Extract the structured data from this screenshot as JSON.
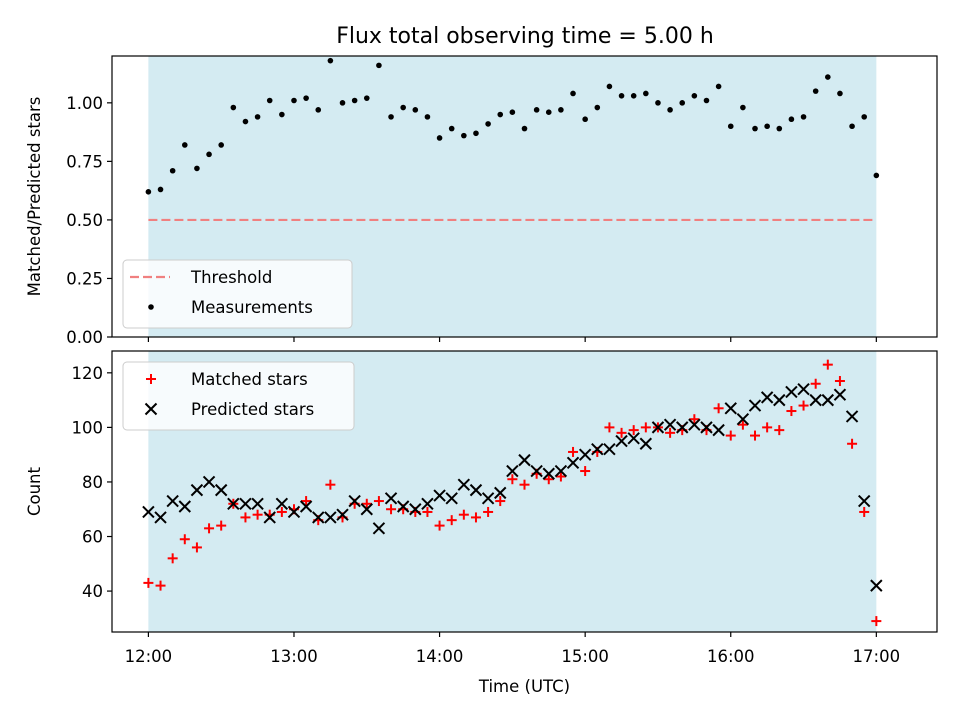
{
  "figure": {
    "title": "Flux total observing time = 5.00 h"
  },
  "chart_data": [
    {
      "type": "scatter",
      "ylabel": "Matched/Predicted stars",
      "xlabel": "",
      "x_tick_labels": [
        "12:00",
        "13:00",
        "14:00",
        "15:00",
        "16:00",
        "17:00"
      ],
      "ylim": [
        0.0,
        1.2
      ],
      "y_ticks": [
        "0.00",
        "0.25",
        "0.50",
        "0.75",
        "1.00"
      ],
      "observing_window": [
        "12:00",
        "17:00"
      ],
      "legend": {
        "placement": "lower-left",
        "entries": [
          "Threshold",
          "Measurements"
        ]
      },
      "threshold": {
        "name": "Threshold",
        "value": 0.5,
        "style": "dashed",
        "color": "#f08080"
      },
      "series": [
        {
          "name": "Measurements",
          "color": "#000000",
          "x": [
            "12:00",
            "12:05",
            "12:10",
            "12:15",
            "12:20",
            "12:25",
            "12:30",
            "12:35",
            "12:40",
            "12:45",
            "12:50",
            "12:55",
            "13:00",
            "13:05",
            "13:10",
            "13:15",
            "13:20",
            "13:25",
            "13:30",
            "13:35",
            "13:40",
            "13:45",
            "13:50",
            "13:55",
            "14:00",
            "14:05",
            "14:10",
            "14:15",
            "14:20",
            "14:25",
            "14:30",
            "14:35",
            "14:40",
            "14:45",
            "14:50",
            "14:55",
            "15:00",
            "15:05",
            "15:10",
            "15:15",
            "15:20",
            "15:25",
            "15:30",
            "15:35",
            "15:40",
            "15:45",
            "15:50",
            "15:55",
            "16:00",
            "16:05",
            "16:10",
            "16:15",
            "16:20",
            "16:25",
            "16:30",
            "16:35",
            "16:40",
            "16:45",
            "16:50",
            "16:55",
            "17:00"
          ],
          "values": [
            0.62,
            0.63,
            0.71,
            0.82,
            0.72,
            0.78,
            0.82,
            0.98,
            0.92,
            0.94,
            1.01,
            0.95,
            1.01,
            1.02,
            0.97,
            1.18,
            1.0,
            1.01,
            1.02,
            1.16,
            0.94,
            0.98,
            0.97,
            0.94,
            0.85,
            0.89,
            0.86,
            0.87,
            0.91,
            0.95,
            0.96,
            0.89,
            0.97,
            0.96,
            0.97,
            1.04,
            0.93,
            0.98,
            1.07,
            1.03,
            1.03,
            1.04,
            1.0,
            0.97,
            1.0,
            1.03,
            1.01,
            1.07,
            0.9,
            0.98,
            0.89,
            0.9,
            0.89,
            0.93,
            0.94,
            1.05,
            1.11,
            1.04,
            0.9,
            0.94,
            0.69
          ]
        }
      ]
    },
    {
      "type": "scatter",
      "ylabel": "Count",
      "xlabel": "Time (UTC)",
      "x_tick_labels": [
        "12:00",
        "13:00",
        "14:00",
        "15:00",
        "16:00",
        "17:00"
      ],
      "ylim": [
        25,
        128
      ],
      "y_ticks": [
        "40",
        "60",
        "80",
        "100",
        "120"
      ],
      "observing_window": [
        "12:00",
        "17:00"
      ],
      "legend": {
        "placement": "top-left",
        "entries": [
          "Matched stars",
          "Predicted stars"
        ]
      },
      "series": [
        {
          "name": "Matched stars",
          "marker": "plus",
          "color": "#ff0000",
          "x": [
            "12:00",
            "12:05",
            "12:10",
            "12:15",
            "12:20",
            "12:25",
            "12:30",
            "12:35",
            "12:40",
            "12:45",
            "12:50",
            "12:55",
            "13:00",
            "13:05",
            "13:10",
            "13:15",
            "13:20",
            "13:25",
            "13:30",
            "13:35",
            "13:40",
            "13:45",
            "13:50",
            "13:55",
            "14:00",
            "14:05",
            "14:10",
            "14:15",
            "14:20",
            "14:25",
            "14:30",
            "14:35",
            "14:40",
            "14:45",
            "14:50",
            "14:55",
            "15:00",
            "15:05",
            "15:10",
            "15:15",
            "15:20",
            "15:25",
            "15:30",
            "15:35",
            "15:40",
            "15:45",
            "15:50",
            "15:55",
            "16:00",
            "16:05",
            "16:10",
            "16:15",
            "16:20",
            "16:25",
            "16:30",
            "16:35",
            "16:40",
            "16:45",
            "16:50",
            "16:55",
            "17:00"
          ],
          "values": [
            43,
            42,
            52,
            59,
            56,
            63,
            64,
            72,
            67,
            68,
            68,
            69,
            70,
            73,
            66,
            79,
            67,
            72,
            72,
            73,
            70,
            70,
            69,
            69,
            64,
            66,
            68,
            67,
            69,
            73,
            81,
            79,
            83,
            81,
            82,
            91,
            84,
            91,
            100,
            98,
            99,
            100,
            100,
            98,
            99,
            103,
            99,
            107,
            97,
            101,
            97,
            100,
            99,
            106,
            108,
            116,
            123,
            117,
            94,
            69,
            29
          ]
        },
        {
          "name": "Predicted stars",
          "marker": "x",
          "color": "#000000",
          "x": [
            "12:00",
            "12:05",
            "12:10",
            "12:15",
            "12:20",
            "12:25",
            "12:30",
            "12:35",
            "12:40",
            "12:45",
            "12:50",
            "12:55",
            "13:00",
            "13:05",
            "13:10",
            "13:15",
            "13:20",
            "13:25",
            "13:30",
            "13:35",
            "13:40",
            "13:45",
            "13:50",
            "13:55",
            "14:00",
            "14:05",
            "14:10",
            "14:15",
            "14:20",
            "14:25",
            "14:30",
            "14:35",
            "14:40",
            "14:45",
            "14:50",
            "14:55",
            "15:00",
            "15:05",
            "15:10",
            "15:15",
            "15:20",
            "15:25",
            "15:30",
            "15:35",
            "15:40",
            "15:45",
            "15:50",
            "15:55",
            "16:00",
            "16:05",
            "16:10",
            "16:15",
            "16:20",
            "16:25",
            "16:30",
            "16:35",
            "16:40",
            "16:45",
            "16:50",
            "16:55",
            "17:00"
          ],
          "values": [
            69,
            67,
            73,
            71,
            77,
            80,
            77,
            72,
            72,
            72,
            67,
            72,
            69,
            71,
            67,
            67,
            68,
            73,
            70,
            63,
            74,
            71,
            70,
            72,
            75,
            74,
            79,
            77,
            74,
            76,
            84,
            88,
            84,
            83,
            84,
            87,
            90,
            92,
            92,
            95,
            96,
            94,
            100,
            101,
            100,
            101,
            100,
            99,
            107,
            103,
            108,
            111,
            110,
            113,
            114,
            110,
            110,
            112,
            104,
            73,
            42
          ]
        }
      ]
    }
  ]
}
